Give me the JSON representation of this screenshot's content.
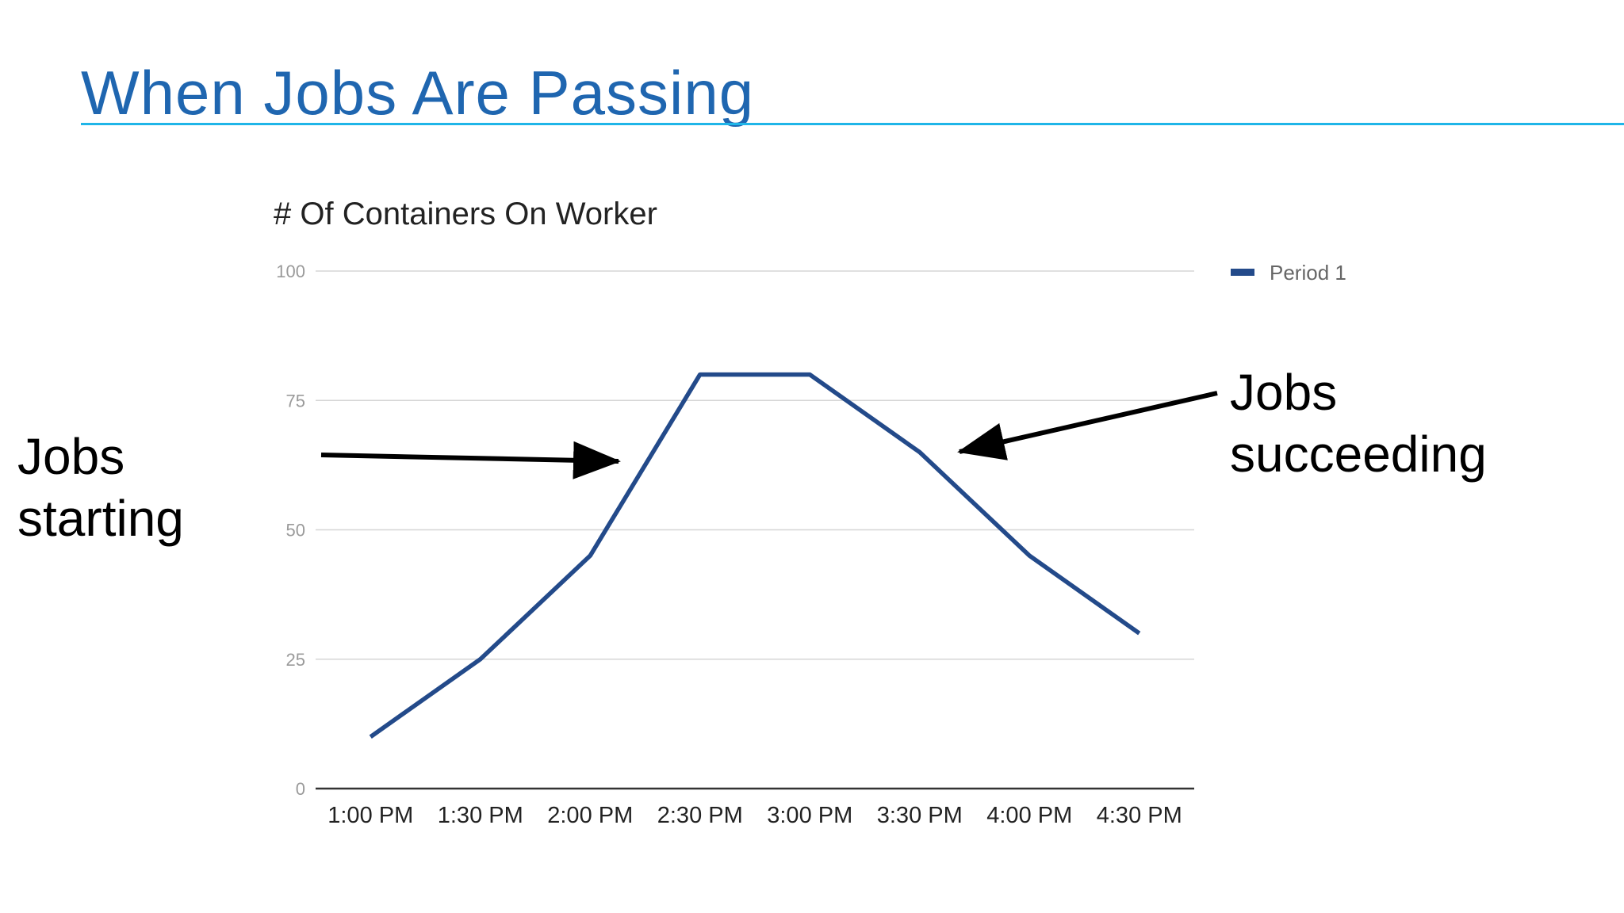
{
  "slide": {
    "title": "When Jobs Are Passing",
    "title_color": "#1f66b0",
    "rule_color": "#1fb5e8"
  },
  "chart_data": {
    "type": "line",
    "title": "# Of Containers On Worker",
    "xlabel": "",
    "ylabel": "",
    "categories": [
      "1:00 PM",
      "1:30 PM",
      "2:00 PM",
      "2:30 PM",
      "3:00 PM",
      "3:30 PM",
      "4:00 PM",
      "4:30 PM"
    ],
    "series": [
      {
        "name": "Period 1",
        "values": [
          10,
          25,
          45,
          80,
          80,
          65,
          45,
          30
        ],
        "color": "#234a8a"
      }
    ],
    "ylim": [
      0,
      100
    ],
    "yticks": [
      0,
      25,
      50,
      75,
      100
    ],
    "grid": true,
    "legend_position": "top-right",
    "annotations": [
      {
        "lines": [
          "Jobs",
          "starting"
        ],
        "points_to": "rising segment near 2:00 PM - 2:30 PM"
      },
      {
        "lines": [
          "Jobs",
          "succeeding"
        ],
        "points_to": "falling segment near 3:30 PM"
      }
    ]
  }
}
